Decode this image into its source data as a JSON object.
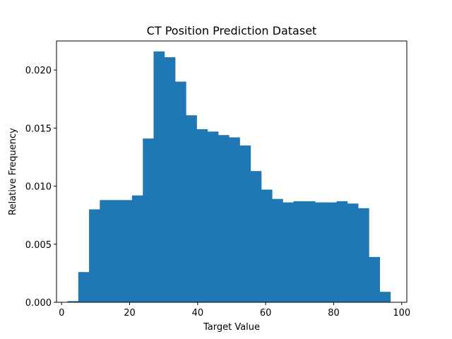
{
  "chart_data": {
    "type": "bar",
    "title": "CT Position Prediction Dataset",
    "xlabel": "Target Value",
    "ylabel": "Relative Frequency",
    "xlim": [
      -1.5,
      101.5
    ],
    "ylim": [
      0,
      0.0225
    ],
    "xticks": [
      0,
      20,
      40,
      60,
      80,
      100
    ],
    "xtick_labels": [
      "0",
      "20",
      "40",
      "60",
      "80",
      "100"
    ],
    "yticks": [
      0,
      0.005,
      0.01,
      0.015,
      0.02
    ],
    "ytick_labels": [
      "0.000",
      "0.005",
      "0.010",
      "0.015",
      "0.020"
    ],
    "grid": false,
    "color": "#1f77b4",
    "bin_edges": [
      1.74,
      4.9,
      8.07,
      11.23,
      14.4,
      17.56,
      20.72,
      23.89,
      27.05,
      30.22,
      33.38,
      36.55,
      39.71,
      42.88,
      46.04,
      49.21,
      52.37,
      55.54,
      58.7,
      61.87,
      65.03,
      68.2,
      71.36,
      74.53,
      77.69,
      80.86,
      84.02,
      87.19,
      90.35,
      93.52,
      96.68
    ],
    "values": [
      0.0001,
      0.0026,
      0.008,
      0.0088,
      0.0088,
      0.0088,
      0.0092,
      0.0141,
      0.0216,
      0.0211,
      0.019,
      0.0161,
      0.0149,
      0.0147,
      0.0144,
      0.0142,
      0.0135,
      0.0113,
      0.0097,
      0.0089,
      0.0086,
      0.0087,
      0.0087,
      0.0086,
      0.0086,
      0.0087,
      0.0085,
      0.0081,
      0.0039,
      0.0009
    ]
  }
}
